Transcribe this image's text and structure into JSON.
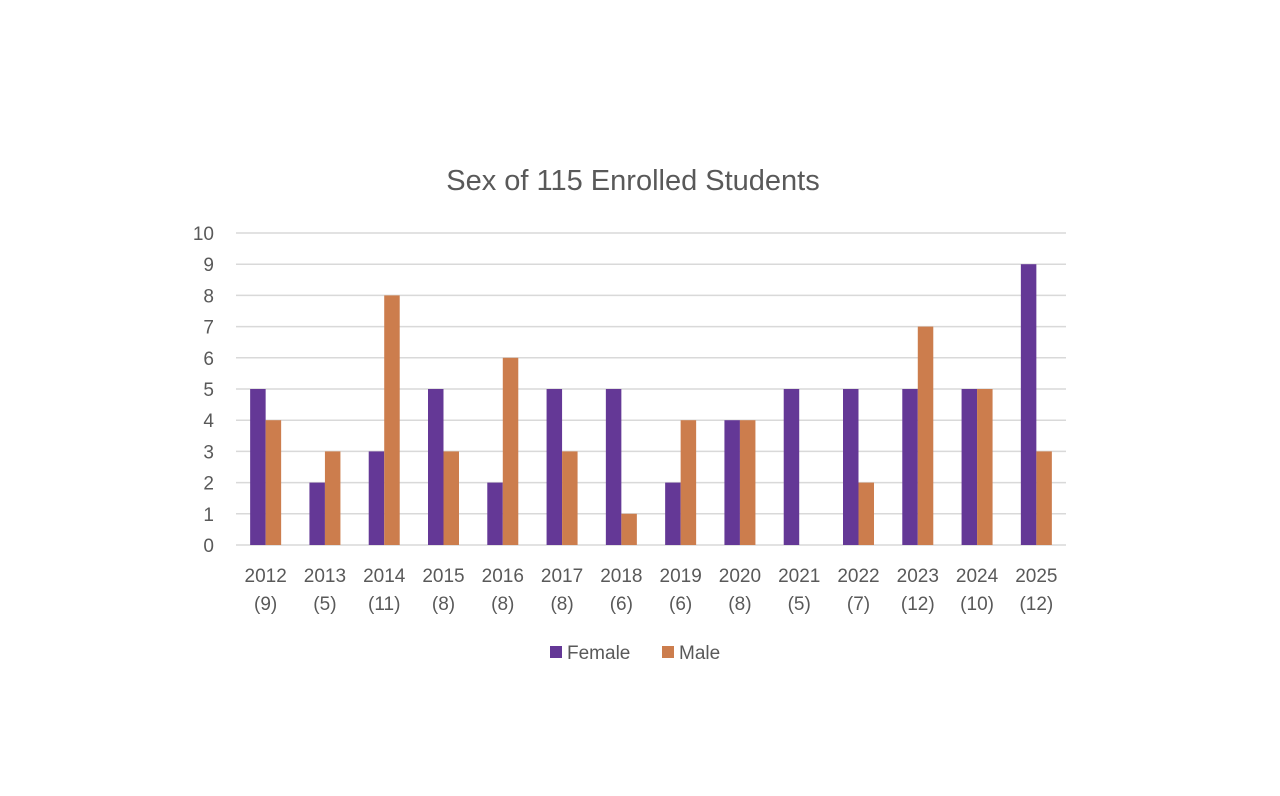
{
  "chart_data": {
    "type": "bar",
    "title": "Sex of 115 Enrolled Students",
    "xlabel": "",
    "ylabel": "",
    "ylim": [
      0,
      10
    ],
    "yticks": [
      "0",
      "1",
      "2",
      "3",
      "4",
      "5",
      "6",
      "7",
      "8",
      "9",
      "10"
    ],
    "grid": true,
    "legend_position": "bottom",
    "categories": [
      {
        "year": "2012",
        "total": "(9)"
      },
      {
        "year": "2013",
        "total": "(5)"
      },
      {
        "year": "2014",
        "total": "(11)"
      },
      {
        "year": "2015",
        "total": "(8)"
      },
      {
        "year": "2016",
        "total": "(8)"
      },
      {
        "year": "2017",
        "total": "(8)"
      },
      {
        "year": "2018",
        "total": "(6)"
      },
      {
        "year": "2019",
        "total": "(6)"
      },
      {
        "year": "2020",
        "total": "(8)"
      },
      {
        "year": "2021",
        "total": "(5)"
      },
      {
        "year": "2022",
        "total": "(7)"
      },
      {
        "year": "2023",
        "total": "(12)"
      },
      {
        "year": "2024",
        "total": "(10)"
      },
      {
        "year": "2025",
        "total": "(12)"
      }
    ],
    "series": [
      {
        "name": "Female",
        "color": "#643896",
        "values": [
          5,
          2,
          3,
          5,
          2,
          5,
          5,
          2,
          4,
          5,
          5,
          5,
          5,
          9
        ]
      },
      {
        "name": "Male",
        "color": "#cc7d4d",
        "values": [
          4,
          3,
          8,
          3,
          6,
          3,
          1,
          4,
          4,
          0,
          2,
          7,
          5,
          3
        ]
      }
    ]
  }
}
